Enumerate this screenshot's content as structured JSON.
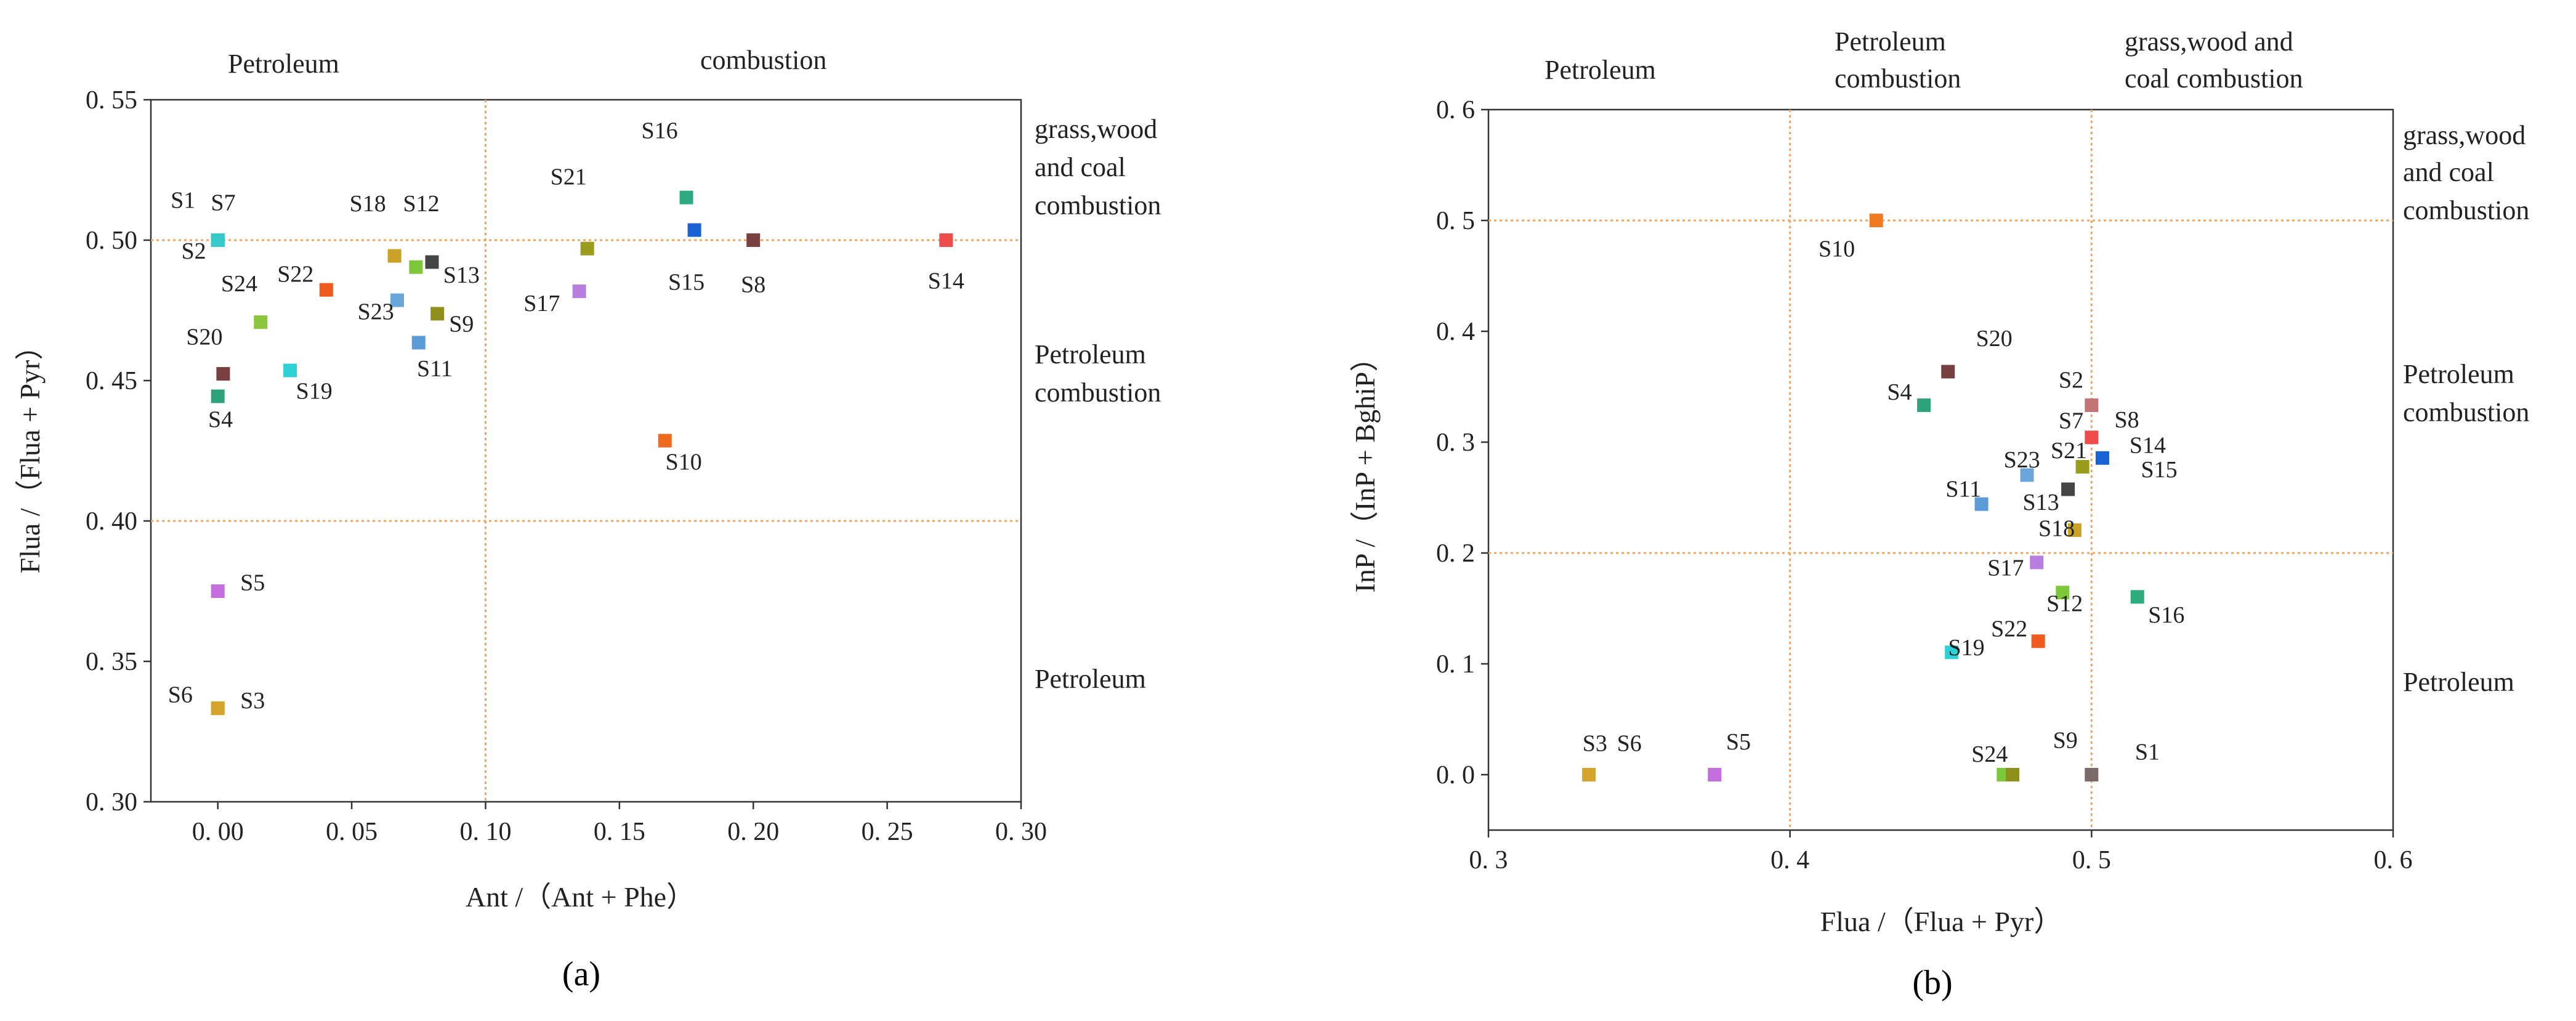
{
  "figure": {
    "panels": [
      {
        "caption": "(a)",
        "region_top": "Petroleum",
        "region_top_right": "combustion",
        "region_right": [
          "grass,wood",
          "and coal",
          "combustion"
        ],
        "region_right_mid": [
          "Petroleum",
          "combustion"
        ],
        "region_right_low": "Petroleum"
      },
      {
        "caption": "(b)",
        "region_top_left": "Petroleum",
        "region_top_mid": [
          "Petroleum",
          "combustion"
        ],
        "region_top_right": [
          "grass,wood and",
          "coal combustion"
        ],
        "region_right": [
          "grass,wood",
          "and coal",
          "combustion"
        ],
        "region_right_mid": [
          "Petroleum",
          "combustion"
        ],
        "region_right_low": "Petroleum"
      }
    ]
  },
  "chart_data": [
    {
      "type": "scatter",
      "title": "",
      "xlabel": "Ant /（Ant + Phe）",
      "ylabel": "Flua /（Flua + Pyr）",
      "xlim": [
        -0.025,
        0.3
      ],
      "ylim": [
        0.3,
        0.55
      ],
      "xticks": [
        0.0,
        0.05,
        0.1,
        0.15,
        0.2,
        0.25,
        0.3
      ],
      "xtick_labels": [
        "0. 00",
        "0. 05",
        "0. 10",
        "0. 15",
        "0. 20",
        "0. 25",
        "0. 30"
      ],
      "yticks": [
        0.3,
        0.35,
        0.4,
        0.45,
        0.5,
        0.55
      ],
      "ytick_labels": [
        "0. 30",
        "0. 35",
        "0. 40",
        "0. 45",
        "0. 50",
        "0. 55"
      ],
      "reference_lines": {
        "x": [
          0.1
        ],
        "y": [
          0.4,
          0.5
        ]
      },
      "grid": false,
      "points": [
        {
          "x": 0.0,
          "y": 0.5,
          "color": "#35c9c9"
        },
        {
          "x": 0.0,
          "y": 0.5,
          "color": "#35c9c9"
        },
        {
          "x": 0.0,
          "y": 0.5,
          "color": "#35c9c9"
        },
        {
          "x": 0.0,
          "y": 0.3333,
          "color": "#d4a52a"
        },
        {
          "x": 0.0,
          "y": 0.3333,
          "color": "#d4a52a"
        },
        {
          "x": 0.0,
          "y": 0.375,
          "color": "#c46ee0"
        },
        {
          "x": 0.0,
          "y": 0.4444,
          "color": "#2ea37a"
        },
        {
          "x": 0.002,
          "y": 0.4524,
          "color": "#7a4040"
        },
        {
          "x": 0.027,
          "y": 0.4536,
          "color": "#2fd0d6"
        },
        {
          "x": 0.016,
          "y": 0.4708,
          "color": "#8cc63e"
        },
        {
          "x": 0.0405,
          "y": 0.4823,
          "color": "#ef5a1f"
        },
        {
          "x": 0.066,
          "y": 0.4944,
          "color": "#c9a227"
        },
        {
          "x": 0.074,
          "y": 0.4904,
          "color": "#7dc83a"
        },
        {
          "x": 0.08,
          "y": 0.4922,
          "color": "#444444"
        },
        {
          "x": 0.067,
          "y": 0.4786,
          "color": "#6aa6d9"
        },
        {
          "x": 0.075,
          "y": 0.4635,
          "color": "#5b9bd6"
        },
        {
          "x": 0.082,
          "y": 0.4738,
          "color": "#8f8f1e"
        },
        {
          "x": 0.138,
          "y": 0.497,
          "color": "#9b9b1c"
        },
        {
          "x": 0.135,
          "y": 0.4818,
          "color": "#b97fe0"
        },
        {
          "x": 0.175,
          "y": 0.5152,
          "color": "#2eab7e"
        },
        {
          "x": 0.178,
          "y": 0.5036,
          "color": "#1a63d6"
        },
        {
          "x": 0.2,
          "y": 0.5,
          "color": "#7a4040"
        },
        {
          "x": 0.272,
          "y": 0.5,
          "color": "#ef4c4c"
        },
        {
          "x": 0.167,
          "y": 0.4286,
          "color": "#ef6a1f"
        }
      ],
      "labels": [
        {
          "text": "S1",
          "x": -0.013,
          "y": 0.5115
        },
        {
          "text": "S7",
          "x": 0.002,
          "y": 0.5106
        },
        {
          "text": "S2",
          "x": -0.009,
          "y": 0.4934
        },
        {
          "text": "S18",
          "x": 0.056,
          "y": 0.5103
        },
        {
          "text": "S12",
          "x": 0.076,
          "y": 0.5103
        },
        {
          "text": "S21",
          "x": 0.131,
          "y": 0.5199
        },
        {
          "text": "S16",
          "x": 0.165,
          "y": 0.5363
        },
        {
          "text": "S15",
          "x": 0.175,
          "y": 0.4823
        },
        {
          "text": "S8",
          "x": 0.2,
          "y": 0.4815
        },
        {
          "text": "S14",
          "x": 0.272,
          "y": 0.4828
        },
        {
          "text": "S22",
          "x": 0.029,
          "y": 0.4852
        },
        {
          "text": "S24",
          "x": 0.008,
          "y": 0.4818
        },
        {
          "text": "S13",
          "x": 0.091,
          "y": 0.4849
        },
        {
          "text": "S23",
          "x": 0.059,
          "y": 0.4718
        },
        {
          "text": "S9",
          "x": 0.091,
          "y": 0.4674
        },
        {
          "text": "S17",
          "x": 0.121,
          "y": 0.4748
        },
        {
          "text": "S11",
          "x": 0.081,
          "y": 0.4515
        },
        {
          "text": "S20",
          "x": -0.005,
          "y": 0.4628
        },
        {
          "text": "S19",
          "x": 0.036,
          "y": 0.4435
        },
        {
          "text": "S4",
          "x": 0.001,
          "y": 0.4334
        },
        {
          "text": "S10",
          "x": 0.174,
          "y": 0.4183
        },
        {
          "text": "S5",
          "x": 0.013,
          "y": 0.3753
        },
        {
          "text": "S6",
          "x": -0.014,
          "y": 0.3354
        },
        {
          "text": "S3",
          "x": 0.013,
          "y": 0.3333
        }
      ]
    },
    {
      "type": "scatter",
      "title": "",
      "xlabel": "Flua /（Flua + Pyr）",
      "ylabel": "InP /（InP + BghiP）",
      "xlim": [
        0.3,
        0.6
      ],
      "ylim": [
        -0.05,
        0.6
      ],
      "xticks": [
        0.3,
        0.4,
        0.5,
        0.6
      ],
      "xtick_labels": [
        "0. 3",
        "0. 4",
        "0. 5",
        "0. 6"
      ],
      "yticks": [
        0.0,
        0.1,
        0.2,
        0.3,
        0.4,
        0.5,
        0.6
      ],
      "ytick_labels": [
        "0. 0",
        "0. 1",
        "0. 2",
        "0. 3",
        "0. 4",
        "0. 5",
        "0. 6"
      ],
      "reference_lines": {
        "x": [
          0.4,
          0.5
        ],
        "y": [
          0.2,
          0.5
        ]
      },
      "grid": false,
      "points": [
        {
          "x": 0.4286,
          "y": 0.5,
          "color": "#ef7a22"
        },
        {
          "x": 0.4524,
          "y": 0.3636,
          "color": "#7a4040"
        },
        {
          "x": 0.4444,
          "y": 0.3333,
          "color": "#2ea37a"
        },
        {
          "x": 0.5,
          "y": 0.3333,
          "color": "#c47474"
        },
        {
          "x": 0.5,
          "y": 0.3043,
          "color": "#ef4c4c"
        },
        {
          "x": 0.5036,
          "y": 0.2857,
          "color": "#1a63d6"
        },
        {
          "x": 0.497,
          "y": 0.2778,
          "color": "#9b9b1c"
        },
        {
          "x": 0.4786,
          "y": 0.2703,
          "color": "#6aa6d9"
        },
        {
          "x": 0.4922,
          "y": 0.2575,
          "color": "#444444"
        },
        {
          "x": 0.4635,
          "y": 0.2441,
          "color": "#5b9bd6"
        },
        {
          "x": 0.4944,
          "y": 0.2206,
          "color": "#c9a227"
        },
        {
          "x": 0.4818,
          "y": 0.1915,
          "color": "#b97fe0"
        },
        {
          "x": 0.4904,
          "y": 0.1643,
          "color": "#7dc83a"
        },
        {
          "x": 0.5152,
          "y": 0.1604,
          "color": "#2eab7e"
        },
        {
          "x": 0.4823,
          "y": 0.1204,
          "color": "#ef5a1f"
        },
        {
          "x": 0.4536,
          "y": 0.1104,
          "color": "#2fd0d6"
        },
        {
          "x": 0.3333,
          "y": 0.0,
          "color": "#d4a52a"
        },
        {
          "x": 0.375,
          "y": 0.0,
          "color": "#c46ee0"
        },
        {
          "x": 0.4708,
          "y": 0.0,
          "color": "#7dc83a"
        },
        {
          "x": 0.4738,
          "y": 0.0,
          "color": "#8f8f1e"
        },
        {
          "x": 0.5,
          "y": 0.0,
          "color": "#7a6a6a"
        }
      ],
      "labels": [
        {
          "text": "S10",
          "x": 0.4155,
          "y": 0.4676
        },
        {
          "text": "S20",
          "x": 0.4677,
          "y": 0.3868
        },
        {
          "text": "S2",
          "x": 0.4932,
          "y": 0.3493
        },
        {
          "text": "S4",
          "x": 0.4363,
          "y": 0.3384
        },
        {
          "text": "S7",
          "x": 0.4932,
          "y": 0.3124
        },
        {
          "text": "S8",
          "x": 0.5117,
          "y": 0.3132
        },
        {
          "text": "S14",
          "x": 0.5186,
          "y": 0.2904
        },
        {
          "text": "S21",
          "x": 0.4925,
          "y": 0.2856
        },
        {
          "text": "S23",
          "x": 0.4769,
          "y": 0.2773
        },
        {
          "text": "S15",
          "x": 0.5224,
          "y": 0.2683
        },
        {
          "text": "S11",
          "x": 0.4575,
          "y": 0.2507
        },
        {
          "text": "S13",
          "x": 0.4832,
          "y": 0.2388
        },
        {
          "text": "S18",
          "x": 0.4884,
          "y": 0.2153
        },
        {
          "text": "S17",
          "x": 0.4715,
          "y": 0.1798
        },
        {
          "text": "S12",
          "x": 0.4911,
          "y": 0.1474
        },
        {
          "text": "S16",
          "x": 0.5248,
          "y": 0.1371
        },
        {
          "text": "S22",
          "x": 0.4727,
          "y": 0.1246
        },
        {
          "text": "S19",
          "x": 0.4585,
          "y": 0.1077
        },
        {
          "text": "S3",
          "x": 0.3353,
          "y": 0.0213
        },
        {
          "text": "S6",
          "x": 0.3467,
          "y": 0.0213
        },
        {
          "text": "S5",
          "x": 0.3829,
          "y": 0.0229
        },
        {
          "text": "S24",
          "x": 0.4662,
          "y": 0.0118
        },
        {
          "text": "S9",
          "x": 0.4913,
          "y": 0.0243
        },
        {
          "text": "S1",
          "x": 0.5185,
          "y": 0.0136
        }
      ]
    }
  ]
}
